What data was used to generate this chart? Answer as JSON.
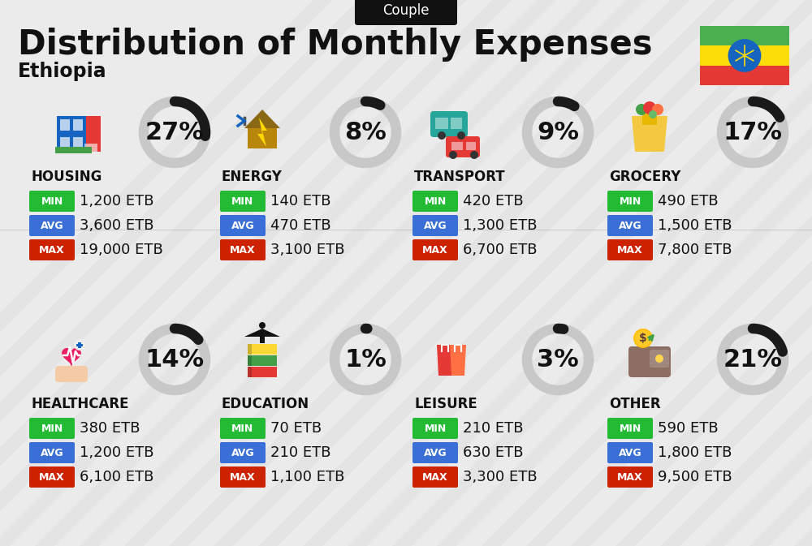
{
  "title": "Distribution of Monthly Expenses",
  "subtitle": "Ethiopia",
  "badge": "Couple",
  "bg_color": "#ebebeb",
  "categories": [
    {
      "name": "HOUSING",
      "pct": 27,
      "min": "1,200 ETB",
      "avg": "3,600 ETB",
      "max": "19,000 ETB",
      "row": 0,
      "col": 0
    },
    {
      "name": "ENERGY",
      "pct": 8,
      "min": "140 ETB",
      "avg": "470 ETB",
      "max": "3,100 ETB",
      "row": 0,
      "col": 1
    },
    {
      "name": "TRANSPORT",
      "pct": 9,
      "min": "420 ETB",
      "avg": "1,300 ETB",
      "max": "6,700 ETB",
      "row": 0,
      "col": 2
    },
    {
      "name": "GROCERY",
      "pct": 17,
      "min": "490 ETB",
      "avg": "1,500 ETB",
      "max": "7,800 ETB",
      "row": 0,
      "col": 3
    },
    {
      "name": "HEALTHCARE",
      "pct": 14,
      "min": "380 ETB",
      "avg": "1,200 ETB",
      "max": "6,100 ETB",
      "row": 1,
      "col": 0
    },
    {
      "name": "EDUCATION",
      "pct": 1,
      "min": "70 ETB",
      "avg": "210 ETB",
      "max": "1,100 ETB",
      "row": 1,
      "col": 1
    },
    {
      "name": "LEISURE",
      "pct": 3,
      "min": "210 ETB",
      "avg": "630 ETB",
      "max": "3,300 ETB",
      "row": 1,
      "col": 2
    },
    {
      "name": "OTHER",
      "pct": 21,
      "min": "590 ETB",
      "avg": "1,800 ETB",
      "max": "9,500 ETB",
      "row": 1,
      "col": 3
    }
  ],
  "min_color": "#22bb33",
  "avg_color": "#3a6fd8",
  "max_color": "#cc2200",
  "arc_color": "#1a1a1a",
  "arc_bg_color": "#c8c8c8",
  "title_fontsize": 30,
  "subtitle_fontsize": 17,
  "cat_fontsize": 12,
  "val_fontsize": 13,
  "pct_fontsize": 22,
  "badge_fontsize": 12
}
